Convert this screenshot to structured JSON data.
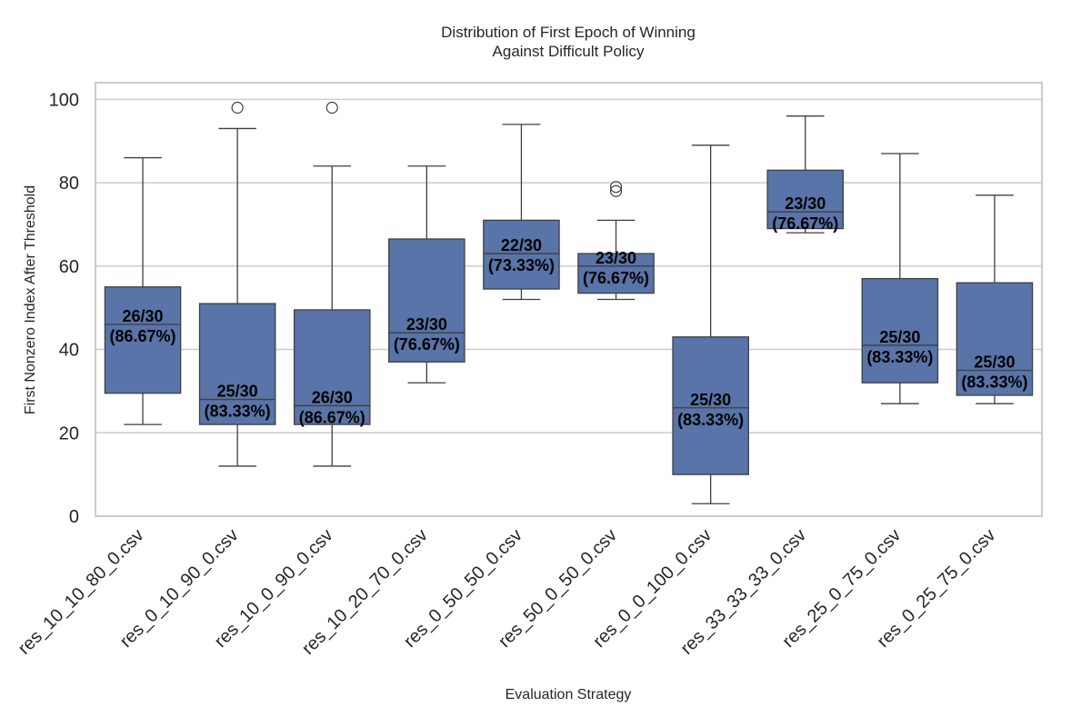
{
  "chart_data": {
    "type": "box",
    "title": [
      "Distribution of First Epoch of Winning",
      "Against Difficult Policy"
    ],
    "xlabel": "Evaluation Strategy",
    "ylabel": "First Nonzero Index After Threshold",
    "ylim": [
      0,
      104
    ],
    "yticks": [
      0,
      20,
      40,
      60,
      80,
      100
    ],
    "grid": true,
    "box_color": "#5874a8",
    "categories": [
      "res_10_10_80_0.csv",
      "res_0_10_90_0.csv",
      "res_10_0_90_0.csv",
      "res_10_20_70_0.csv",
      "res_0_50_50_0.csv",
      "res_50_0_50_0.csv",
      "res_0_0_100_0.csv",
      "res_33_33_33_0.csv",
      "res_25_0_75_0.csv",
      "res_0_25_75_0.csv"
    ],
    "boxes": [
      {
        "whisker_low": 22,
        "q1": 29.5,
        "median": 46,
        "q3": 55,
        "whisker_high": 86,
        "outliers": [],
        "annotation": [
          "26/30",
          "(86.67%)"
        ]
      },
      {
        "whisker_low": 12,
        "q1": 22,
        "median": 28,
        "q3": 51,
        "whisker_high": 93,
        "outliers": [
          98
        ],
        "annotation": [
          "25/30",
          "(83.33%)"
        ]
      },
      {
        "whisker_low": 12,
        "q1": 22,
        "median": 26.5,
        "q3": 49.5,
        "whisker_high": 84,
        "outliers": [
          98
        ],
        "annotation": [
          "26/30",
          "(86.67%)"
        ]
      },
      {
        "whisker_low": 32,
        "q1": 37,
        "median": 44,
        "q3": 66.5,
        "whisker_high": 84,
        "outliers": [],
        "annotation": [
          "23/30",
          "(76.67%)"
        ]
      },
      {
        "whisker_low": 52,
        "q1": 54.5,
        "median": 63,
        "q3": 71,
        "whisker_high": 94,
        "outliers": [],
        "annotation": [
          "22/30",
          "(73.33%)"
        ]
      },
      {
        "whisker_low": 52,
        "q1": 53.5,
        "median": 60,
        "q3": 63,
        "whisker_high": 71,
        "outliers": [
          78,
          79
        ],
        "annotation": [
          "23/30",
          "(76.67%)"
        ]
      },
      {
        "whisker_low": 3,
        "q1": 10,
        "median": 26,
        "q3": 43,
        "whisker_high": 89,
        "outliers": [],
        "annotation": [
          "25/30",
          "(83.33%)"
        ]
      },
      {
        "whisker_low": 68,
        "q1": 69,
        "median": 73,
        "q3": 83,
        "whisker_high": 96,
        "outliers": [],
        "annotation": [
          "23/30",
          "(76.67%)"
        ]
      },
      {
        "whisker_low": 27,
        "q1": 32,
        "median": 41,
        "q3": 57,
        "whisker_high": 87,
        "outliers": [],
        "annotation": [
          "25/30",
          "(83.33%)"
        ]
      },
      {
        "whisker_low": 27,
        "q1": 29,
        "median": 35,
        "q3": 56,
        "whisker_high": 77,
        "outliers": [],
        "annotation": [
          "25/30",
          "(83.33%)"
        ]
      }
    ]
  }
}
